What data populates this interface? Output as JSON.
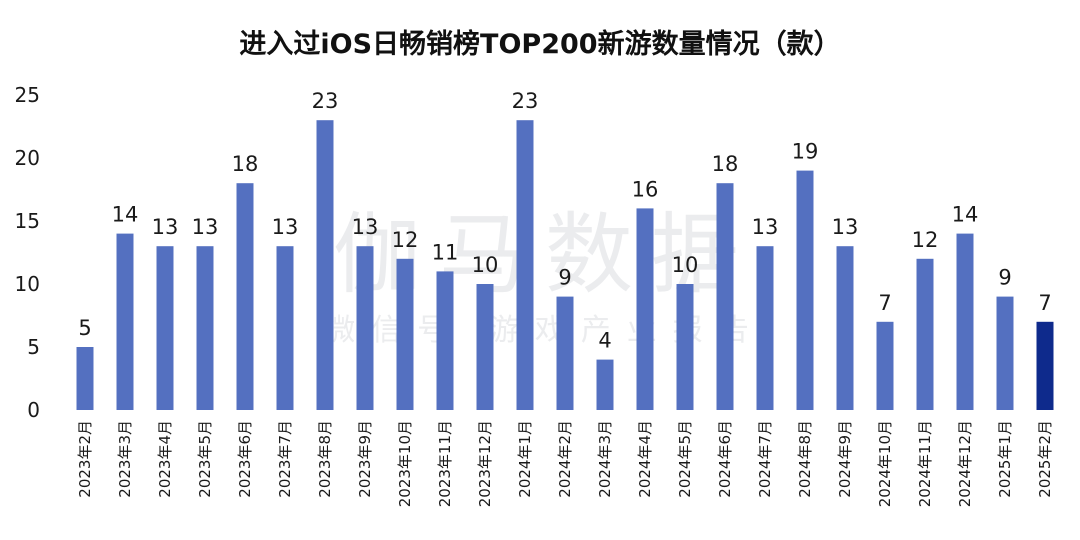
{
  "chart_data": {
    "type": "bar",
    "title": "进入过iOS日畅销榜TOP200新游数量情况（款）",
    "categories": [
      "2023年2月",
      "2023年3月",
      "2023年4月",
      "2023年5月",
      "2023年6月",
      "2023年7月",
      "2023年8月",
      "2023年9月",
      "2023年10月",
      "2023年11月",
      "2023年12月",
      "2024年1月",
      "2024年2月",
      "2024年3月",
      "2024年4月",
      "2024年5月",
      "2024年6月",
      "2024年7月",
      "2024年8月",
      "2024年9月",
      "2024年10月",
      "2024年11月",
      "2024年12月",
      "2025年1月",
      "2025年2月"
    ],
    "values": [
      5,
      14,
      13,
      13,
      18,
      13,
      23,
      13,
      12,
      11,
      10,
      23,
      9,
      4,
      16,
      10,
      18,
      13,
      19,
      13,
      7,
      12,
      14,
      9,
      7
    ],
    "ylim": [
      0,
      25
    ],
    "yticks": [
      0,
      5,
      10,
      15,
      20,
      25
    ],
    "grid": false,
    "legend": "none",
    "xlabel": "",
    "ylabel": "",
    "colors": {
      "bar": "#5470c0",
      "highlight": "#0e2a8c"
    },
    "highlight_index": 24
  },
  "watermark": {
    "main": "伽马数据",
    "sub": "微信号  游戏产业报告"
  }
}
